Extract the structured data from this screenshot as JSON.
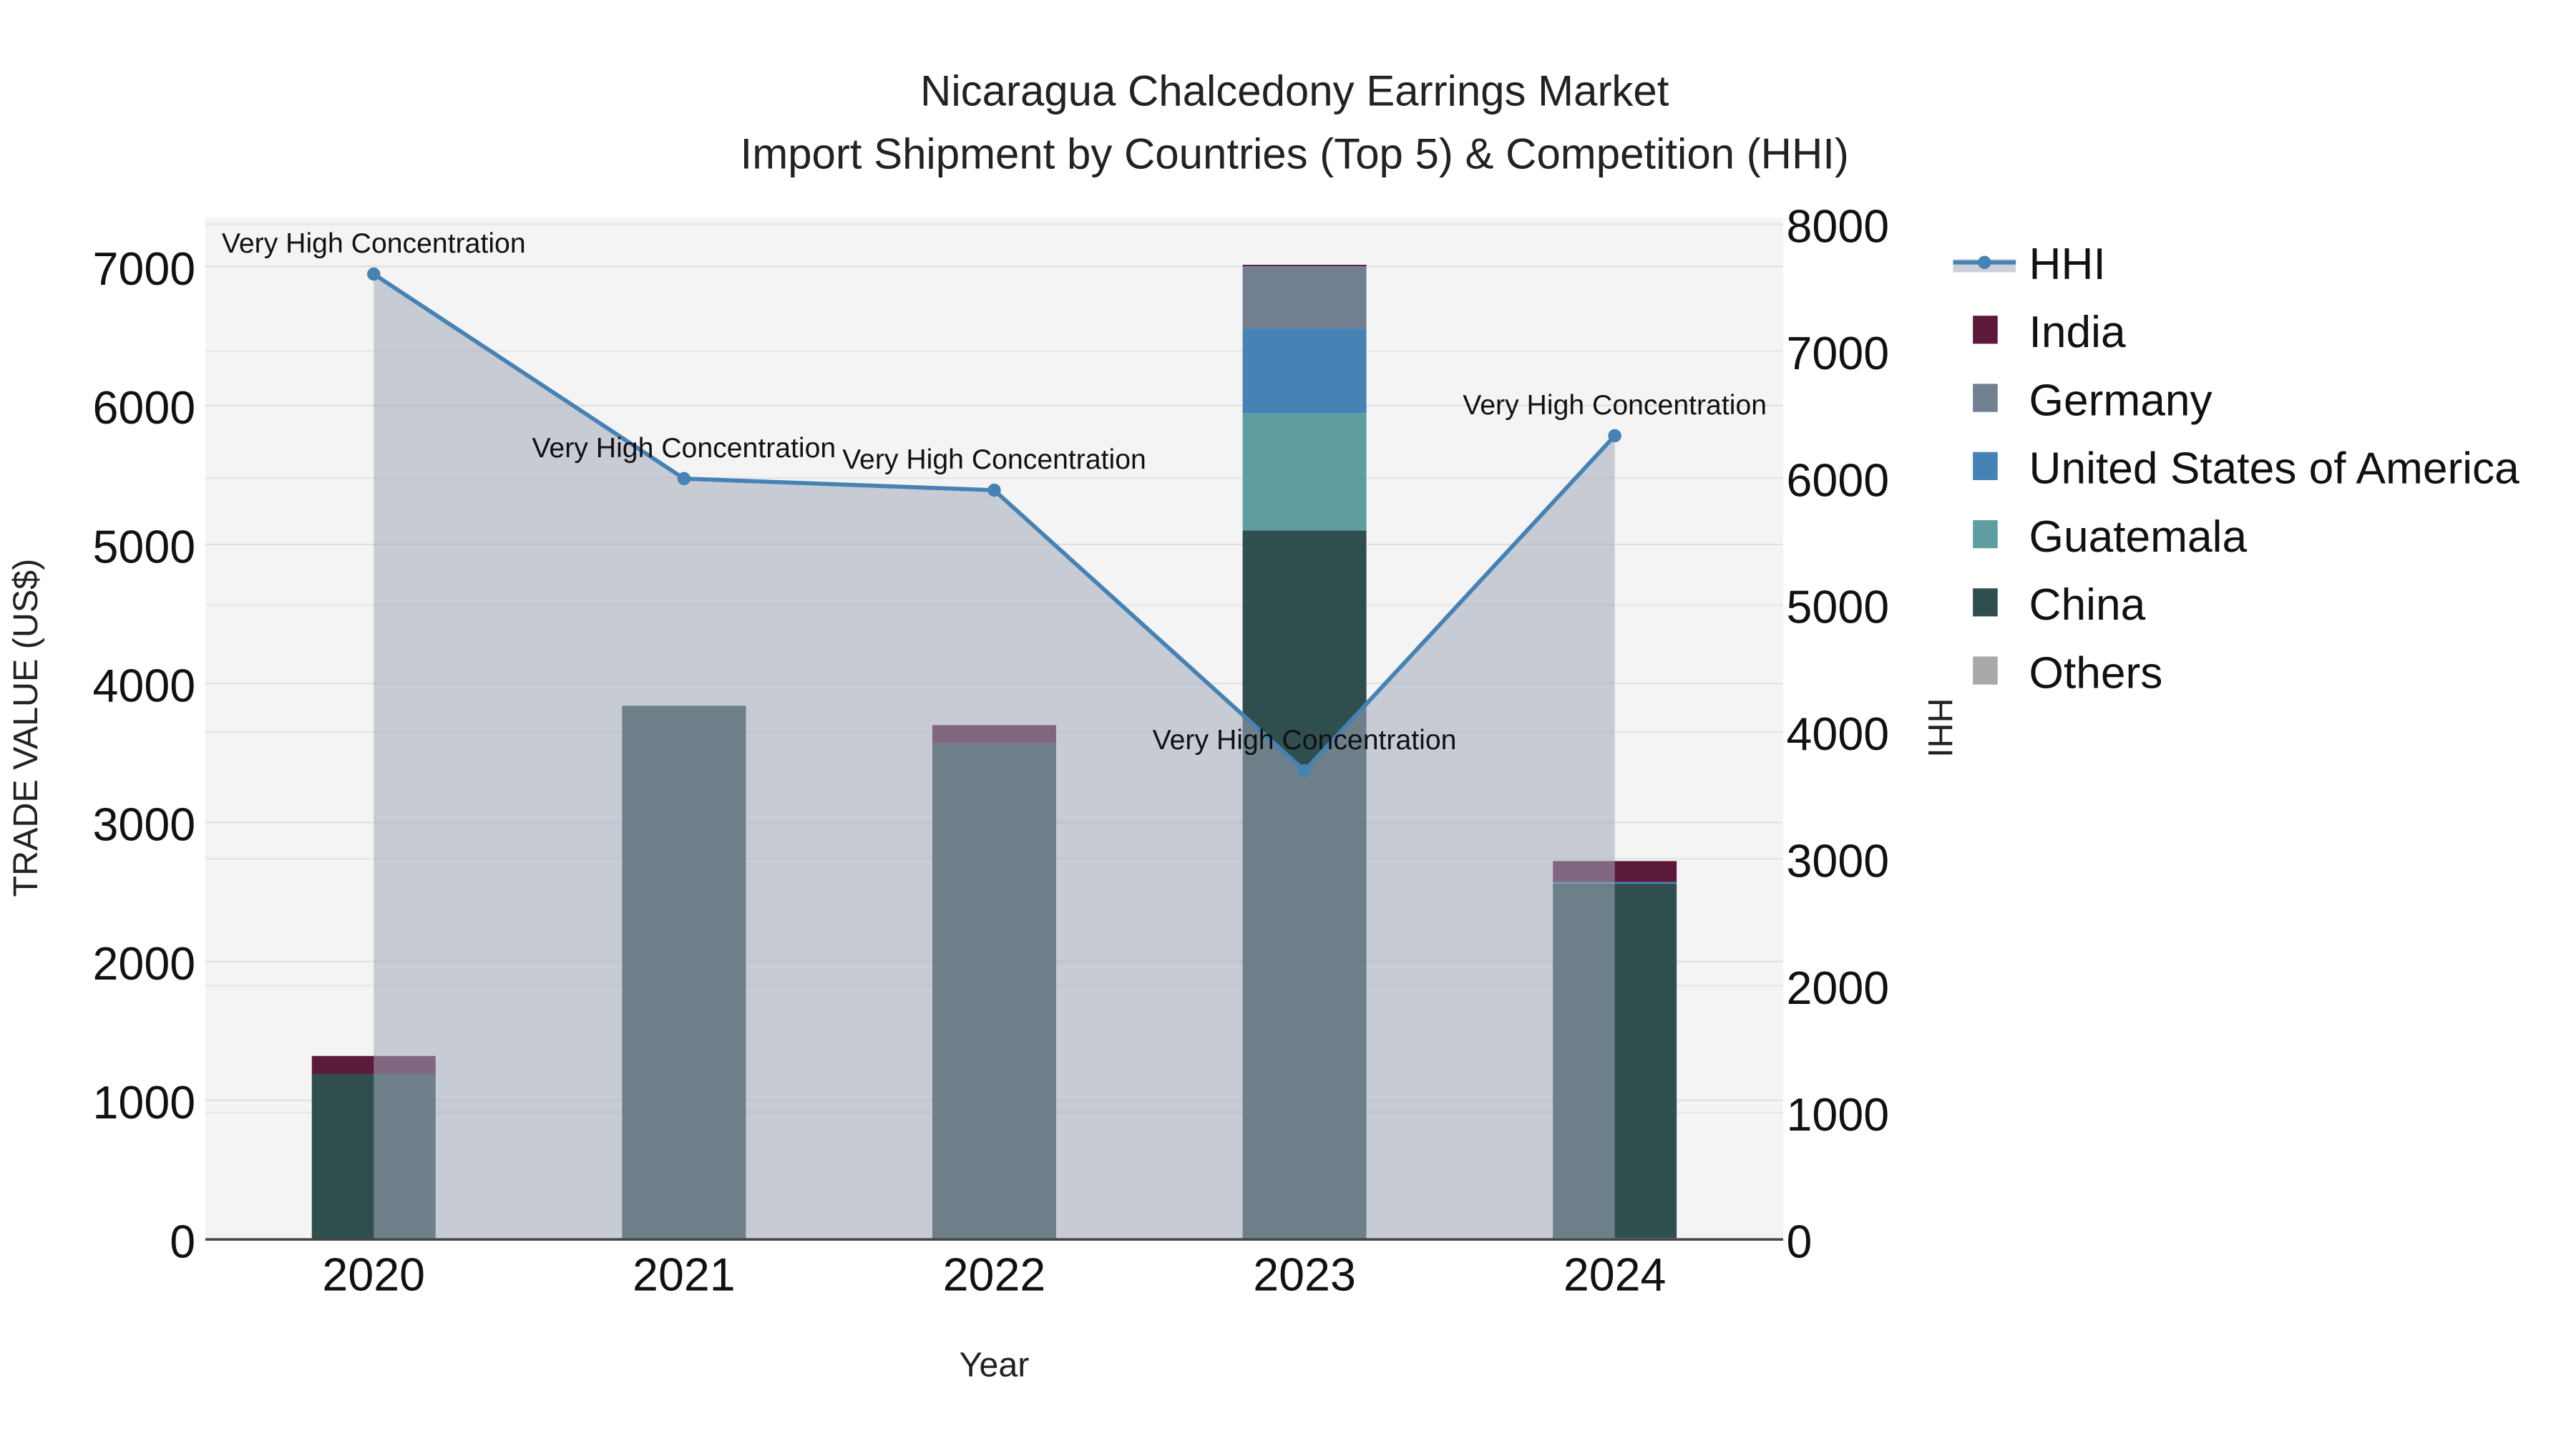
{
  "chart_data": {
    "type": "bar",
    "title_line1": "Nicaragua Chalcedony Earrings Market",
    "title_line2": "Import Shipment by Countries (Top 5) & Competition (HHI)",
    "xlabel": "Year",
    "ylabel": "TRADE VALUE (US$)",
    "y2label": "HHI",
    "categories": [
      "2020",
      "2021",
      "2022",
      "2023",
      "2024"
    ],
    "ylim": [
      0,
      7350
    ],
    "y2lim": [
      0,
      8050
    ],
    "yticks": [
      "0",
      "1000",
      "2000",
      "3000",
      "4000",
      "5000",
      "6000",
      "7000"
    ],
    "y2ticks": [
      "0",
      "1000",
      "2000",
      "3000",
      "4000",
      "5000",
      "6000",
      "7000",
      "8000"
    ],
    "series": [
      {
        "name": "Others",
        "color": "#a9a9a9",
        "values": [
          0,
          0,
          0,
          0,
          10
        ]
      },
      {
        "name": "China",
        "color": "#2f4f4f",
        "values": [
          1190,
          3840,
          3570,
          5100,
          2550
        ]
      },
      {
        "name": "Guatemala",
        "color": "#5f9ea0",
        "values": [
          0,
          0,
          0,
          845,
          0
        ]
      },
      {
        "name": "United States of America",
        "color": "#4682b4",
        "values": [
          0,
          0,
          0,
          607,
          12
        ]
      },
      {
        "name": "Germany",
        "color": "#708090",
        "values": [
          0,
          0,
          0,
          450,
          0
        ]
      },
      {
        "name": "India",
        "color": "#5c1a3a",
        "values": [
          130,
          0,
          130,
          10,
          150
        ]
      }
    ],
    "hhi": {
      "name": "HHI",
      "color": "#4682b4",
      "values": [
        7607,
        5995,
        5904,
        3693,
        6333
      ],
      "annotations": [
        "Very High Concentration",
        "Very High Concentration",
        "Very High Concentration",
        "Very High Concentration",
        "Very High Concentration"
      ]
    },
    "legend_order": [
      "HHI",
      "India",
      "Germany",
      "United States of America",
      "Guatemala",
      "China",
      "Others"
    ],
    "legend_position": "right",
    "grid": true
  }
}
